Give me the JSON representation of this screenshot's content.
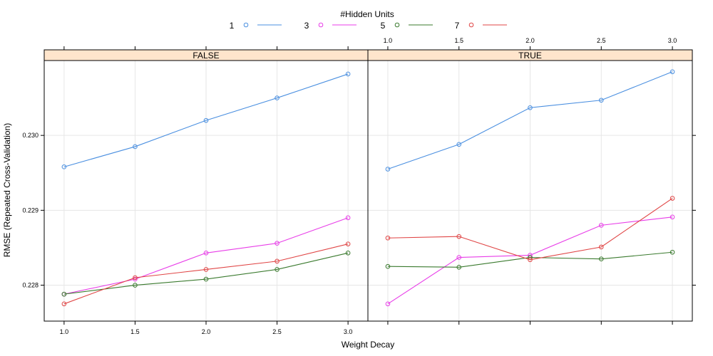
{
  "chart_data": {
    "type": "line",
    "legend_title": "#Hidden Units",
    "legend_placement": "top",
    "xlabel": "Weight Decay",
    "ylabel": "RMSE (Repeated Cross-Validation)",
    "x": [
      1.0,
      1.5,
      2.0,
      2.5,
      3.0
    ],
    "x_tick_labels": [
      "1.0",
      "1.5",
      "2.0",
      "2.5",
      "3.0"
    ],
    "xlim": [
      0.86,
      3.14
    ],
    "y_ticks": [
      0.228,
      0.229,
      0.23
    ],
    "y_tick_labels": [
      "0.228",
      "0.229",
      "0.230"
    ],
    "ylim": [
      0.22752,
      0.231
    ],
    "grid": true,
    "series_meta": [
      {
        "name": "1",
        "color": "#4a8fe0"
      },
      {
        "name": "3",
        "color": "#e83de8"
      },
      {
        "name": "5",
        "color": "#3a7a2e"
      },
      {
        "name": "7",
        "color": "#e04545"
      }
    ],
    "panels": [
      {
        "strip_label": "FALSE",
        "series": [
          {
            "name": "1",
            "values": [
              0.22958,
              0.22985,
              0.2302,
              0.2305,
              0.23082
            ]
          },
          {
            "name": "3",
            "values": [
              0.22788,
              0.22808,
              0.22843,
              0.22856,
              0.2289
            ]
          },
          {
            "name": "5",
            "values": [
              0.22788,
              0.228,
              0.22808,
              0.22821,
              0.22843
            ]
          },
          {
            "name": "7",
            "values": [
              0.22775,
              0.2281,
              0.22821,
              0.22832,
              0.22855
            ]
          }
        ]
      },
      {
        "strip_label": "TRUE",
        "series": [
          {
            "name": "1",
            "values": [
              0.22955,
              0.22988,
              0.23037,
              0.23047,
              0.23085
            ]
          },
          {
            "name": "3",
            "values": [
              0.22775,
              0.22837,
              0.2284,
              0.2288,
              0.22891
            ]
          },
          {
            "name": "5",
            "values": [
              0.22825,
              0.22824,
              0.22837,
              0.22835,
              0.22844
            ]
          },
          {
            "name": "7",
            "values": [
              0.22863,
              0.22865,
              0.22834,
              0.22851,
              0.22916
            ]
          }
        ]
      }
    ]
  }
}
